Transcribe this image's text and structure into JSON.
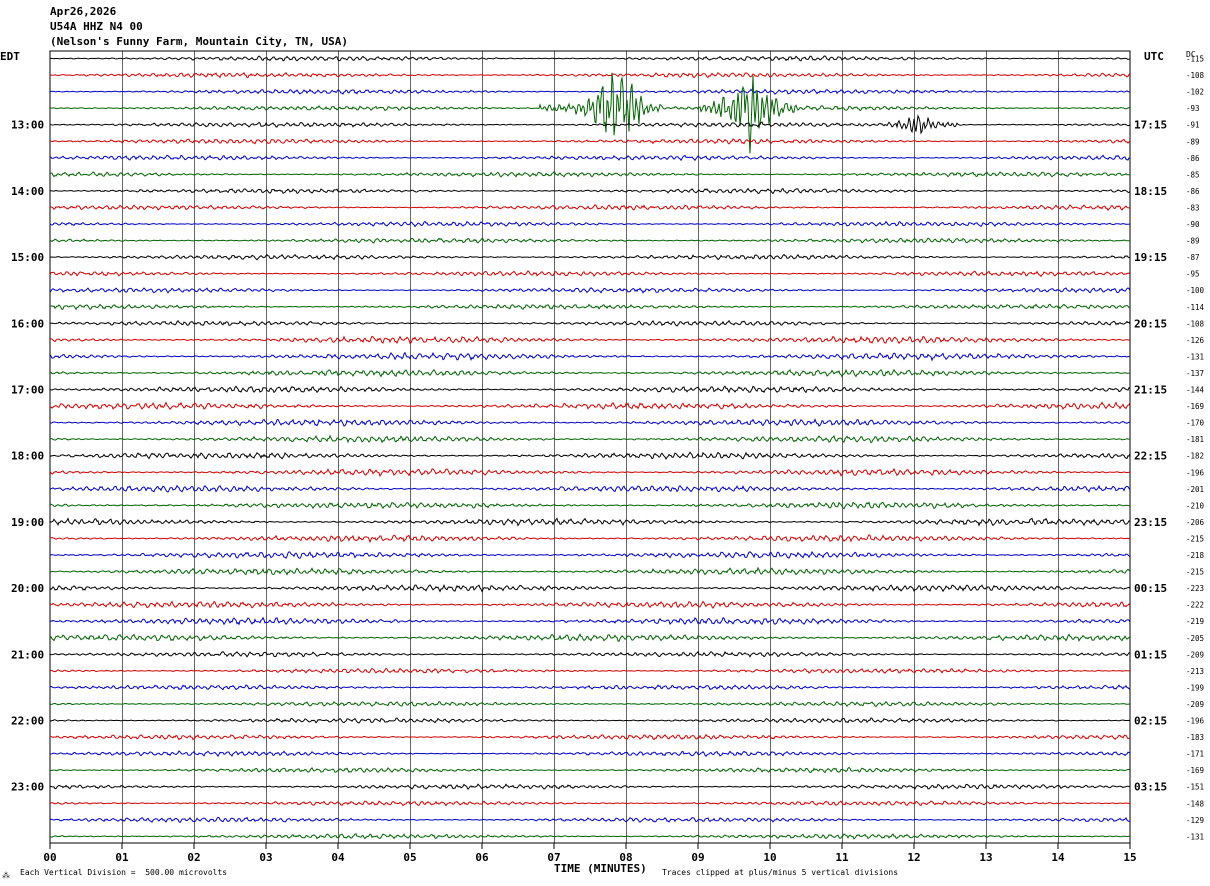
{
  "header": {
    "date": "Apr26,2026",
    "station": "U54A HHZ N4 00",
    "location": "(Nelson's Funny Farm, Mountain City, TN, USA)"
  },
  "left_zone_label": "EDT",
  "right_zone_label": "UTC",
  "dc_label": "DC",
  "footer": {
    "scale_note": "Each Vertical Division =  500.00 microvolts",
    "clip_note": "Traces clipped at plus/minus 5 vertical divisions",
    "corner_mark": "⁂"
  },
  "colors": {
    "black": "#000000",
    "red": "#d40000",
    "blue": "#0000c8",
    "green": "#006400",
    "grid": "#000000"
  },
  "chart_data": {
    "type": "line",
    "title": "",
    "xlabel": "TIME (MINUTES)",
    "ylabel": "",
    "xlim": [
      0,
      15
    ],
    "x_tick_labels": [
      "00",
      "01",
      "02",
      "03",
      "04",
      "05",
      "06",
      "07",
      "08",
      "09",
      "10",
      "11",
      "12",
      "13",
      "14",
      "15"
    ],
    "left_hour_labels": [
      "13:00",
      "14:00",
      "15:00",
      "16:00",
      "17:00",
      "18:00",
      "19:00",
      "20:00",
      "21:00",
      "22:00",
      "23:00"
    ],
    "right_hour_labels": [
      "17:15",
      "18:15",
      "19:15",
      "20:15",
      "21:15",
      "22:15",
      "23:15",
      "00:15",
      "01:15",
      "02:15",
      "03:15"
    ],
    "trace_colors": [
      "black",
      "red",
      "blue",
      "green"
    ],
    "trace_count": 48,
    "dc_offsets": [
      -115,
      -108,
      -102,
      -93,
      -91,
      -89,
      -86,
      -85,
      -86,
      -83,
      -90,
      -89,
      -87,
      -95,
      -100,
      -114,
      -108,
      -126,
      -131,
      -137,
      -144,
      -169,
      -170,
      -181,
      -182,
      -196,
      -201,
      -210,
      -206,
      -215,
      -218,
      -215,
      -223,
      -222,
      -219,
      -205,
      -209,
      -213,
      -199,
      -209,
      -196,
      -183,
      -171,
      -169,
      -151,
      -148,
      -129,
      -131
    ],
    "events": [
      {
        "trace": 3,
        "start_min": 6.8,
        "end_min": 8.5,
        "peak_min": 7.85,
        "amplitude": "large"
      },
      {
        "trace": 3,
        "start_min": 9.0,
        "end_min": 10.4,
        "peak_min": 9.72,
        "amplitude": "large"
      },
      {
        "trace": 4,
        "start_min": 11.6,
        "end_min": 12.6,
        "peak_min": 12.05,
        "amplitude": "medium"
      }
    ]
  }
}
